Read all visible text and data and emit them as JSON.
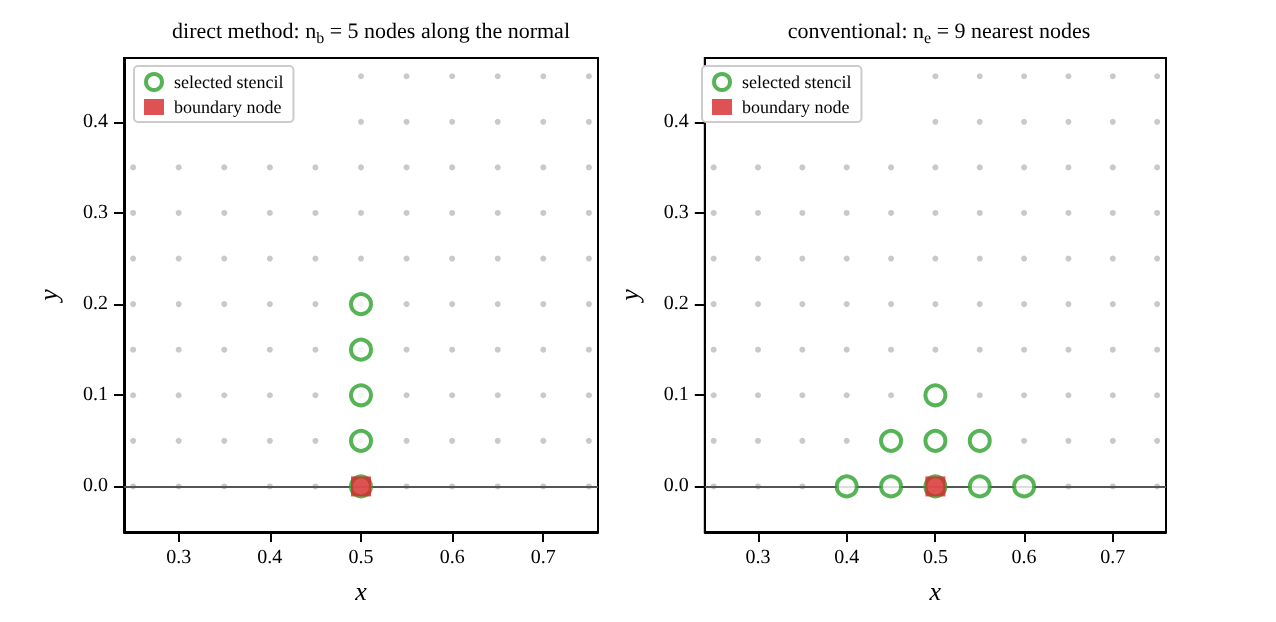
{
  "chart_data": [
    {
      "type": "scatter",
      "title": "direct method: n$_{b}$ = 5 nodes along the normal",
      "xlabel": "x",
      "ylabel": "y",
      "xlim": [
        0.24,
        0.76
      ],
      "ylim": [
        -0.05,
        0.47
      ],
      "xticks": [
        0.3,
        0.4,
        0.5,
        0.6,
        0.7
      ],
      "yticks": [
        {
          "value": 0,
          "label": "0.0"
        },
        0.1,
        0.2,
        0.3,
        0.4
      ],
      "grid": false,
      "legend": "top left",
      "ref_lines": [
        {
          "axis": "y",
          "value": 0,
          "color": "#555555"
        }
      ],
      "series": [
        {
          "color": "#bbbbbb",
          "marker": "circle",
          "x": [
            0.25,
            0.3,
            0.35,
            0.4,
            0.45,
            0.55,
            0.6,
            0.65,
            0.7,
            0.75,
            0.25,
            0.3,
            0.35,
            0.4,
            0.45,
            0.5,
            0.55,
            0.6,
            0.65,
            0.7,
            0.75,
            0.25,
            0.3,
            0.35,
            0.4,
            0.45,
            0.5,
            0.55,
            0.6,
            0.65,
            0.7,
            0.75,
            0.25,
            0.3,
            0.35,
            0.4,
            0.45,
            0.5,
            0.55,
            0.6,
            0.65,
            0.7,
            0.75,
            0.25,
            0.3,
            0.35,
            0.4,
            0.45,
            0.5,
            0.55,
            0.6,
            0.65,
            0.7,
            0.75,
            0.25,
            0.3,
            0.35,
            0.4,
            0.45,
            0.5,
            0.55,
            0.6,
            0.65,
            0.7,
            0.75,
            0.25,
            0.3,
            0.35,
            0.4,
            0.45,
            0.5,
            0.55,
            0.6,
            0.65,
            0.7,
            0.75,
            0.25,
            0.3,
            0.35,
            0.4,
            0.45,
            0.5,
            0.55,
            0.6,
            0.65,
            0.7,
            0.75,
            0.5,
            0.55,
            0.6,
            0.65,
            0.7,
            0.75,
            0.5,
            0.55,
            0.6,
            0.65,
            0.7,
            0.75
          ],
          "values": [
            0,
            0,
            0,
            0,
            0,
            0,
            0,
            0,
            0,
            0,
            0.05,
            0.05,
            0.05,
            0.05,
            0.05,
            0.05,
            0.05,
            0.05,
            0.05,
            0.05,
            0.05,
            0.1,
            0.1,
            0.1,
            0.1,
            0.1,
            0.1,
            0.1,
            0.1,
            0.1,
            0.1,
            0.1,
            0.15,
            0.15,
            0.15,
            0.15,
            0.15,
            0.15,
            0.15,
            0.15,
            0.15,
            0.15,
            0.15,
            0.2,
            0.2,
            0.2,
            0.2,
            0.2,
            0.2,
            0.2,
            0.2,
            0.2,
            0.2,
            0.2,
            0.25,
            0.25,
            0.25,
            0.25,
            0.25,
            0.25,
            0.25,
            0.25,
            0.25,
            0.25,
            0.25,
            0.3,
            0.3,
            0.3,
            0.3,
            0.3,
            0.3,
            0.3,
            0.3,
            0.3,
            0.3,
            0.3,
            0.35,
            0.35,
            0.35,
            0.35,
            0.35,
            0.35,
            0.35,
            0.35,
            0.35,
            0.35,
            0.35,
            0.4,
            0.4,
            0.4,
            0.4,
            0.4,
            0.4,
            0.45,
            0.45,
            0.45,
            0.45,
            0.45,
            0.45
          ]
        },
        {
          "name": "selected stencil",
          "color": "#2ca02c",
          "marker": "circle",
          "x": [
            0.5,
            0.5,
            0.5,
            0.5,
            0.5
          ],
          "values": [
            0,
            0.05,
            0.1,
            0.15,
            0.2
          ]
        },
        {
          "name": "boundary node",
          "color": "#d62728",
          "marker": "square",
          "x": [
            0.5
          ],
          "values": [
            0
          ]
        }
      ]
    },
    {
      "type": "scatter",
      "title": "conventional: n$_{e}$ = 9 nearest nodes",
      "xlabel": "x",
      "ylabel": "y",
      "xlim": [
        0.24,
        0.76
      ],
      "ylim": [
        -0.05,
        0.47
      ],
      "xticks": [
        0.3,
        0.4,
        0.5,
        0.6,
        0.7
      ],
      "yticks": [
        {
          "value": 0,
          "label": "0.0"
        },
        0.1,
        0.2,
        0.3,
        0.4
      ],
      "grid": false,
      "legend": "top left",
      "ref_lines": [
        {
          "axis": "y",
          "value": 0,
          "color": "#555555"
        }
      ],
      "series": [
        {
          "color": "#bbbbbb",
          "marker": "circle",
          "x": [
            0.25,
            0.3,
            0.35,
            0.65,
            0.7,
            0.75,
            0.25,
            0.3,
            0.35,
            0.4,
            0.6,
            0.65,
            0.7,
            0.75,
            0.25,
            0.3,
            0.35,
            0.4,
            0.45,
            0.55,
            0.6,
            0.65,
            0.7,
            0.75,
            0.25,
            0.3,
            0.35,
            0.4,
            0.45,
            0.5,
            0.55,
            0.6,
            0.65,
            0.7,
            0.75,
            0.25,
            0.3,
            0.35,
            0.4,
            0.45,
            0.5,
            0.55,
            0.6,
            0.65,
            0.7,
            0.75,
            0.25,
            0.3,
            0.35,
            0.4,
            0.45,
            0.5,
            0.55,
            0.6,
            0.65,
            0.7,
            0.75,
            0.25,
            0.3,
            0.35,
            0.4,
            0.45,
            0.5,
            0.55,
            0.6,
            0.65,
            0.7,
            0.75,
            0.25,
            0.3,
            0.35,
            0.4,
            0.45,
            0.5,
            0.55,
            0.6,
            0.65,
            0.7,
            0.75,
            0.5,
            0.55,
            0.6,
            0.65,
            0.7,
            0.75,
            0.5,
            0.55,
            0.6,
            0.65,
            0.7,
            0.75
          ],
          "values": [
            0,
            0,
            0,
            0,
            0,
            0,
            0.05,
            0.05,
            0.05,
            0.05,
            0.05,
            0.05,
            0.05,
            0.05,
            0.1,
            0.1,
            0.1,
            0.1,
            0.1,
            0.1,
            0.1,
            0.1,
            0.1,
            0.1,
            0.15,
            0.15,
            0.15,
            0.15,
            0.15,
            0.15,
            0.15,
            0.15,
            0.15,
            0.15,
            0.15,
            0.2,
            0.2,
            0.2,
            0.2,
            0.2,
            0.2,
            0.2,
            0.2,
            0.2,
            0.2,
            0.2,
            0.25,
            0.25,
            0.25,
            0.25,
            0.25,
            0.25,
            0.25,
            0.25,
            0.25,
            0.25,
            0.25,
            0.3,
            0.3,
            0.3,
            0.3,
            0.3,
            0.3,
            0.3,
            0.3,
            0.3,
            0.3,
            0.3,
            0.35,
            0.35,
            0.35,
            0.35,
            0.35,
            0.35,
            0.35,
            0.35,
            0.35,
            0.35,
            0.35,
            0.4,
            0.4,
            0.4,
            0.4,
            0.4,
            0.4,
            0.45,
            0.45,
            0.45,
            0.45,
            0.45,
            0.45
          ]
        },
        {
          "name": "selected stencil",
          "color": "#2ca02c",
          "marker": "circle",
          "x": [
            0.4,
            0.45,
            0.5,
            0.55,
            0.6,
            0.45,
            0.5,
            0.55,
            0.5
          ],
          "values": [
            0,
            0,
            0,
            0,
            0,
            0.05,
            0.05,
            0.05,
            0.1
          ]
        },
        {
          "name": "boundary node",
          "color": "#d62728",
          "marker": "square",
          "x": [
            0.5
          ],
          "values": [
            0
          ]
        }
      ]
    }
  ]
}
